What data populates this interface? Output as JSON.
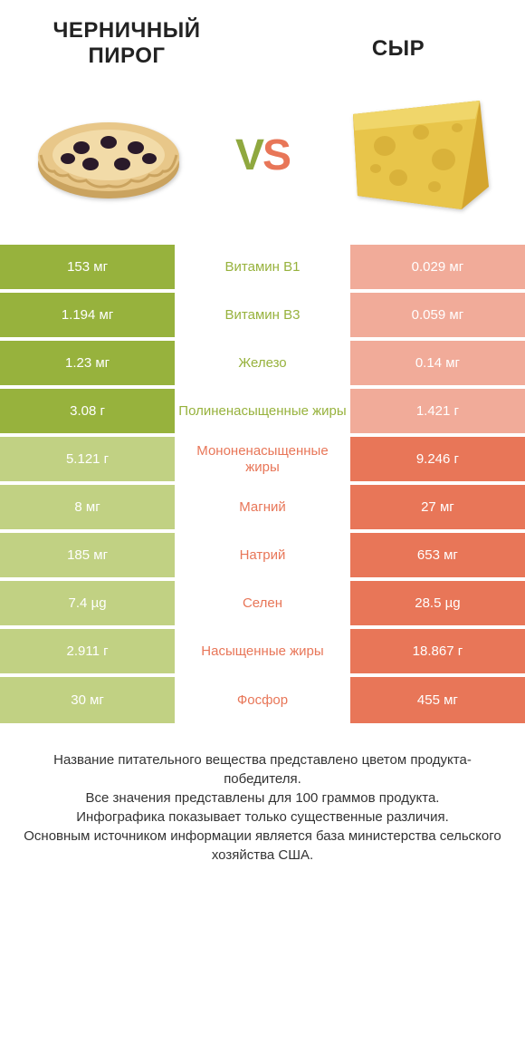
{
  "header": {
    "left_title": "ЧЕРНИЧНЫЙ ПИРОГ",
    "right_title": "СЫР",
    "vs_text_v": "V",
    "vs_text_s": "S"
  },
  "colors": {
    "left_win": "#97b23d",
    "left_lose": "#c1d183",
    "right_win": "#e87658",
    "right_lose": "#f1ab99",
    "mid_left_text": "#97b23d",
    "mid_right_text": "#e87658",
    "cell_gap": "#ffffff"
  },
  "rows": [
    {
      "left": "153 мг",
      "mid": "Витамин B1",
      "right": "0.029 мг",
      "winner": "left"
    },
    {
      "left": "1.194 мг",
      "mid": "Витамин B3",
      "right": "0.059 мг",
      "winner": "left"
    },
    {
      "left": "1.23 мг",
      "mid": "Железо",
      "right": "0.14 мг",
      "winner": "left"
    },
    {
      "left": "3.08 г",
      "mid": "Полиненасыщенные жиры",
      "right": "1.421 г",
      "winner": "left"
    },
    {
      "left": "5.121 г",
      "mid": "Мононенасыщенные жиры",
      "right": "9.246 г",
      "winner": "right"
    },
    {
      "left": "8 мг",
      "mid": "Магний",
      "right": "27 мг",
      "winner": "right"
    },
    {
      "left": "185 мг",
      "mid": "Натрий",
      "right": "653 мг",
      "winner": "right"
    },
    {
      "left": "7.4 µg",
      "mid": "Селен",
      "right": "28.5 µg",
      "winner": "right"
    },
    {
      "left": "2.911 г",
      "mid": "Насыщенные жиры",
      "right": "18.867 г",
      "winner": "right"
    },
    {
      "left": "30 мг",
      "mid": "Фосфор",
      "right": "455 мг",
      "winner": "right"
    }
  ],
  "footer": {
    "line1": "Название питательного вещества представлено цветом продукта-победителя.",
    "line2": "Все значения представлены для 100 граммов продукта.",
    "line3": "Инфографика показывает только существенные различия.",
    "line4": "Основным источником информации является база министерства сельского хозяйства США."
  },
  "illustration": {
    "pie": {
      "crust": "#e8c789",
      "crust_edge": "#caa35f",
      "berry": "#2a1a2a"
    },
    "cheese": {
      "body": "#e8c54a",
      "rind": "#d4a52e",
      "hole": "#d9b23a"
    }
  }
}
